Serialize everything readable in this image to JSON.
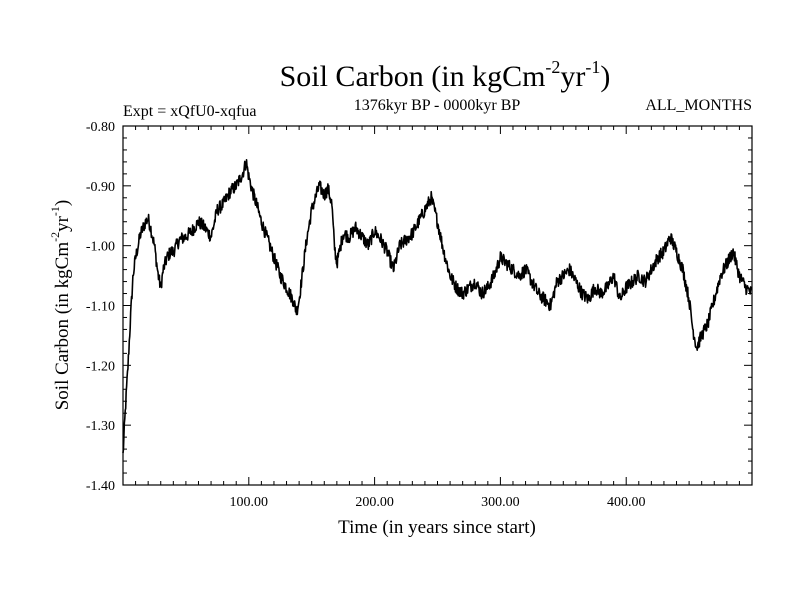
{
  "chart_data": {
    "type": "line",
    "title": {
      "text": "Soil Carbon (in kgCm",
      "sup1": "-2",
      "mid": "yr",
      "sup2": "-1",
      "end": ")"
    },
    "subtitle_left": "Expt = xQfU0-xqfua",
    "subtitle_center": "1376kyr BP - 0000kyr BP",
    "subtitle_right": "ALL_MONTHS",
    "xlabel": "Time (in years since start)",
    "ylabel": {
      "text": "Soil Carbon (in kgCm",
      "sup1": "-2",
      "mid": "yr",
      "sup2": "-1",
      "end": ")"
    },
    "xlim": [
      0,
      500
    ],
    "ylim": [
      -1.4,
      -0.8
    ],
    "xticks": [
      100,
      200,
      300,
      400
    ],
    "xtick_labels": [
      "100.00",
      "200.00",
      "300.00",
      "400.00"
    ],
    "yticks": [
      -1.4,
      -1.3,
      -1.2,
      -1.1,
      -1.0,
      -0.9,
      -0.8
    ],
    "ytick_labels": [
      "-1.40",
      "-1.30",
      "-1.20",
      "-1.10",
      "-1.00",
      "-0.90",
      "-0.80"
    ],
    "series": [
      {
        "name": "Soil Carbon",
        "color": "#000000",
        "x": [
          0,
          2,
          4,
          6,
          8,
          10,
          12,
          14,
          16,
          18,
          20,
          22,
          25,
          28,
          30,
          32,
          35,
          38,
          40,
          45,
          50,
          55,
          60,
          65,
          70,
          75,
          80,
          85,
          90,
          95,
          98,
          100,
          103,
          106,
          110,
          115,
          120,
          125,
          130,
          135,
          138,
          140,
          143,
          146,
          150,
          153,
          156,
          160,
          163,
          166,
          168,
          170,
          175,
          180,
          185,
          190,
          195,
          200,
          205,
          210,
          215,
          220,
          225,
          230,
          235,
          240,
          245,
          250,
          255,
          260,
          265,
          270,
          275,
          280,
          285,
          290,
          295,
          300,
          305,
          310,
          315,
          320,
          325,
          330,
          335,
          340,
          345,
          350,
          355,
          360,
          365,
          370,
          375,
          380,
          385,
          390,
          395,
          400,
          405,
          410,
          415,
          420,
          425,
          430,
          435,
          440,
          445,
          450,
          453,
          456,
          460,
          465,
          470,
          475,
          480,
          485,
          490,
          495,
          500
        ],
        "values": [
          -1.35,
          -1.27,
          -1.2,
          -1.12,
          -1.05,
          -1.02,
          -1.0,
          -0.98,
          -0.97,
          -0.96,
          -0.955,
          -0.97,
          -1.0,
          -1.05,
          -1.07,
          -1.04,
          -1.02,
          -1.01,
          -1.01,
          -0.99,
          -0.985,
          -0.975,
          -0.96,
          -0.97,
          -0.985,
          -0.94,
          -0.93,
          -0.91,
          -0.9,
          -0.88,
          -0.86,
          -0.885,
          -0.91,
          -0.93,
          -0.96,
          -0.99,
          -1.02,
          -1.05,
          -1.07,
          -1.09,
          -1.11,
          -1.09,
          -1.04,
          -0.99,
          -0.94,
          -0.92,
          -0.9,
          -0.915,
          -0.905,
          -0.93,
          -1.0,
          -1.03,
          -0.98,
          -0.985,
          -0.97,
          -0.985,
          -1.0,
          -0.975,
          -0.99,
          -1.01,
          -1.04,
          -1.0,
          -0.99,
          -0.98,
          -0.96,
          -0.94,
          -0.92,
          -0.96,
          -1.01,
          -1.05,
          -1.07,
          -1.08,
          -1.07,
          -1.06,
          -1.08,
          -1.07,
          -1.05,
          -1.02,
          -1.03,
          -1.04,
          -1.05,
          -1.04,
          -1.06,
          -1.08,
          -1.09,
          -1.1,
          -1.06,
          -1.05,
          -1.04,
          -1.06,
          -1.08,
          -1.09,
          -1.07,
          -1.08,
          -1.07,
          -1.05,
          -1.09,
          -1.07,
          -1.06,
          -1.05,
          -1.06,
          -1.04,
          -1.02,
          -1.01,
          -0.985,
          -1.01,
          -1.04,
          -1.09,
          -1.14,
          -1.17,
          -1.15,
          -1.13,
          -1.09,
          -1.05,
          -1.03,
          -1.01,
          -1.05,
          -1.07,
          -1.08
        ]
      }
    ]
  }
}
